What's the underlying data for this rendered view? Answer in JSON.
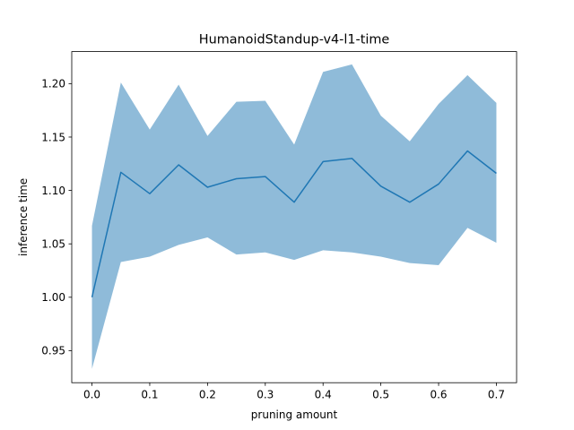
{
  "chart_data": {
    "type": "line",
    "title": "HumanoidStandup-v4-l1-time",
    "xlabel": "pruning amount",
    "ylabel": "inference time",
    "xlim": [
      -0.035,
      0.735
    ],
    "ylim": [
      0.92,
      1.23
    ],
    "xticks": [
      0.0,
      0.1,
      0.2,
      0.3,
      0.4,
      0.5,
      0.6,
      0.7
    ],
    "xtick_labels": [
      "0.0",
      "0.1",
      "0.2",
      "0.3",
      "0.4",
      "0.5",
      "0.6",
      "0.7"
    ],
    "yticks": [
      0.95,
      1.0,
      1.05,
      1.1,
      1.15,
      1.2
    ],
    "ytick_labels": [
      "0.95",
      "1.00",
      "1.05",
      "1.10",
      "1.15",
      "1.20"
    ],
    "grid": false,
    "legend": "none",
    "x": [
      0.0,
      0.05,
      0.1,
      0.15,
      0.2,
      0.25,
      0.3,
      0.35,
      0.4,
      0.45,
      0.5,
      0.55,
      0.6,
      0.65,
      0.7
    ],
    "series": [
      {
        "values": [
          1.0,
          1.117,
          1.097,
          1.124,
          1.103,
          1.111,
          1.113,
          1.089,
          1.127,
          1.13,
          1.104,
          1.089,
          1.106,
          1.137,
          1.116
        ],
        "lower": [
          0.933,
          1.033,
          1.038,
          1.049,
          1.056,
          1.04,
          1.042,
          1.035,
          1.044,
          1.042,
          1.038,
          1.032,
          1.03,
          1.065,
          1.051
        ],
        "upper": [
          1.067,
          1.201,
          1.157,
          1.199,
          1.151,
          1.183,
          1.184,
          1.143,
          1.211,
          1.218,
          1.17,
          1.146,
          1.181,
          1.208,
          1.182
        ],
        "color": "#1f77b4",
        "fill_color": "#1f77b4",
        "fill_opacity": 0.5
      }
    ]
  }
}
